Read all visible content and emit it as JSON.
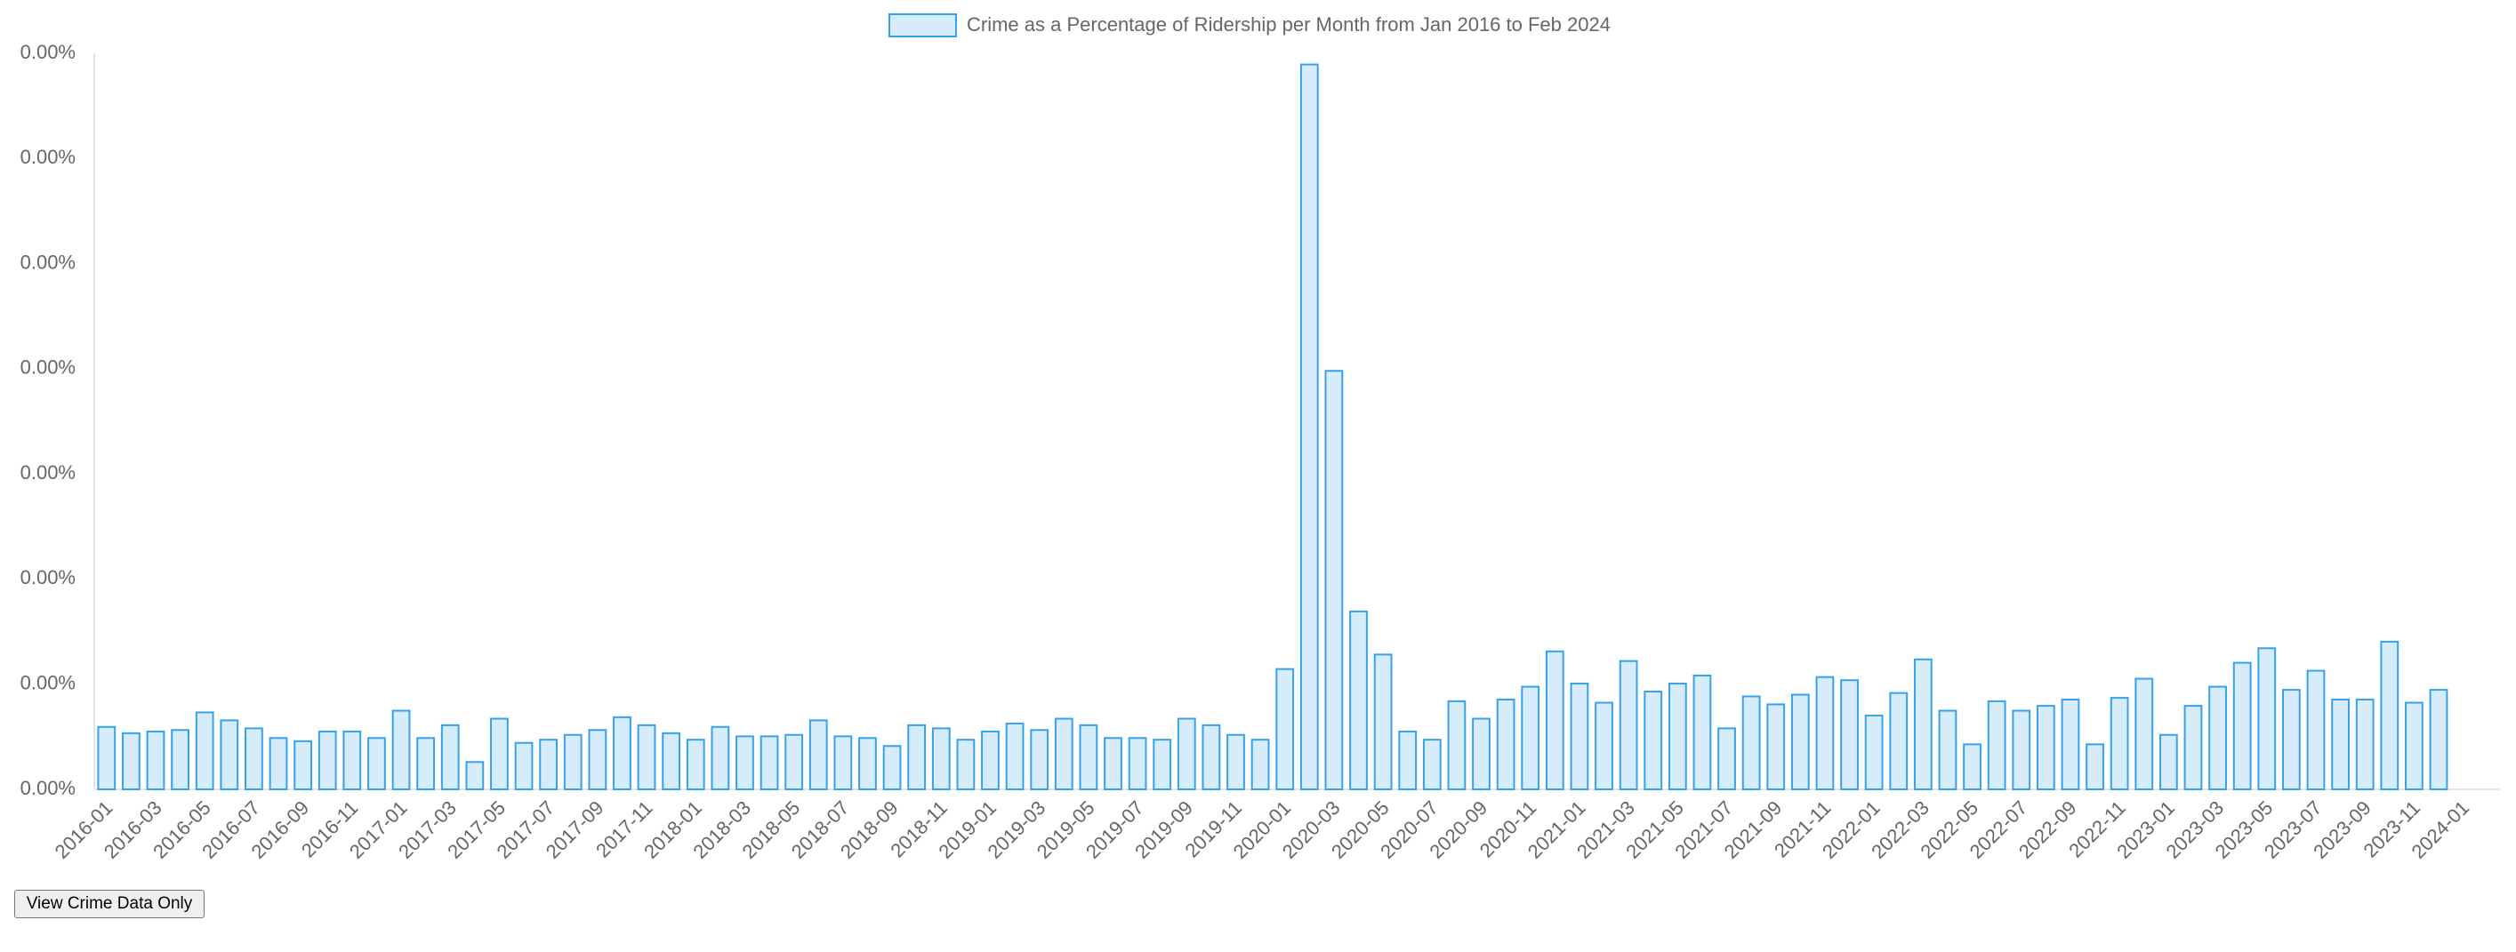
{
  "chart_data": {
    "type": "bar",
    "categories": [
      "2016-01",
      null,
      "2016-03",
      null,
      "2016-05",
      null,
      "2016-07",
      null,
      "2016-09",
      null,
      "2016-11",
      null,
      "2017-01",
      null,
      "2017-03",
      null,
      "2017-05",
      null,
      "2017-07",
      null,
      "2017-09",
      null,
      "2017-11",
      null,
      "2018-01",
      null,
      "2018-03",
      null,
      "2018-05",
      null,
      "2018-07",
      null,
      "2018-09",
      null,
      "2018-11",
      null,
      "2019-01",
      null,
      "2019-03",
      null,
      "2019-05",
      null,
      "2019-07",
      null,
      "2019-09",
      null,
      "2019-11",
      null,
      "2020-01",
      null,
      "2020-03",
      null,
      "2020-05",
      null,
      "2020-07",
      null,
      "2020-09",
      null,
      "2020-11",
      null,
      "2021-01",
      null,
      "2021-03",
      null,
      "2021-05",
      null,
      "2021-07",
      null,
      "2021-09",
      null,
      "2021-11",
      null,
      "2022-01",
      null,
      "2022-03",
      null,
      "2022-05",
      null,
      "2022-07",
      null,
      "2022-09",
      null,
      "2022-11",
      null,
      "2023-01",
      null,
      "2023-03",
      null,
      "2023-05",
      null,
      "2023-07",
      null,
      "2023-09",
      null,
      "2023-11",
      null,
      "2024-01",
      null
    ],
    "series": [
      {
        "name": "Crime as a Percentage of Ridership per Month from Jan 2016 to Feb 2024",
        "color": "#36a2eb",
        "values": [
          0.000297,
          0.000267,
          0.000275,
          0.000282,
          0.000366,
          0.000328,
          0.00029,
          0.000244,
          0.000229,
          0.000275,
          0.000275,
          0.000244,
          0.000374,
          0.000244,
          0.000305,
          0.00013,
          0.000336,
          0.000221,
          0.000236,
          0.000259,
          0.000282,
          0.000343,
          0.000305,
          0.000267,
          0.000236,
          0.000297,
          0.000252,
          0.000252,
          0.000259,
          0.000328,
          0.000252,
          0.000244,
          0.000206,
          0.000305,
          0.00029,
          0.000236,
          0.000275,
          0.000313,
          0.000282,
          0.000336,
          0.000305,
          0.000244,
          0.000244,
          0.000236,
          0.000336,
          0.000305,
          0.000259,
          0.000236,
          0.000572,
          0.003447,
          0.00199,
          0.000846,
          0.000641,
          0.000275,
          0.000236,
          0.000419,
          0.000336,
          0.000427,
          0.000488,
          0.000656,
          0.000503,
          0.000412,
          0.00061,
          0.000465,
          0.000503,
          0.000541,
          0.00029,
          0.000442,
          0.000404,
          0.00045,
          0.000534,
          0.000519,
          0.000351,
          0.000458,
          0.000618,
          0.000374,
          0.000214,
          0.000419,
          0.000374,
          0.000397,
          0.000427,
          0.000214,
          0.000435,
          0.000526,
          0.000259,
          0.000397,
          0.000488,
          0.000602,
          0.000671,
          0.000473,
          0.000564,
          0.000427,
          0.000427,
          0.000702,
          0.000412,
          0.000473,
          null,
          null
        ]
      }
    ],
    "ylim": [
      0,
      0.0035
    ],
    "yticks": [
      {
        "value": 0,
        "label": "0.00%"
      },
      {
        "value": 0.0005,
        "label": "0.00%"
      },
      {
        "value": 0.001,
        "label": "0.00%"
      },
      {
        "value": 0.0015,
        "label": "0.00%"
      },
      {
        "value": 0.002,
        "label": "0.00%"
      },
      {
        "value": 0.0025,
        "label": "0.00%"
      },
      {
        "value": 0.003,
        "label": "0.00%"
      },
      {
        "value": 0.0035,
        "label": "0.00%"
      }
    ],
    "grid": false
  },
  "button": "View Crime Data Only"
}
